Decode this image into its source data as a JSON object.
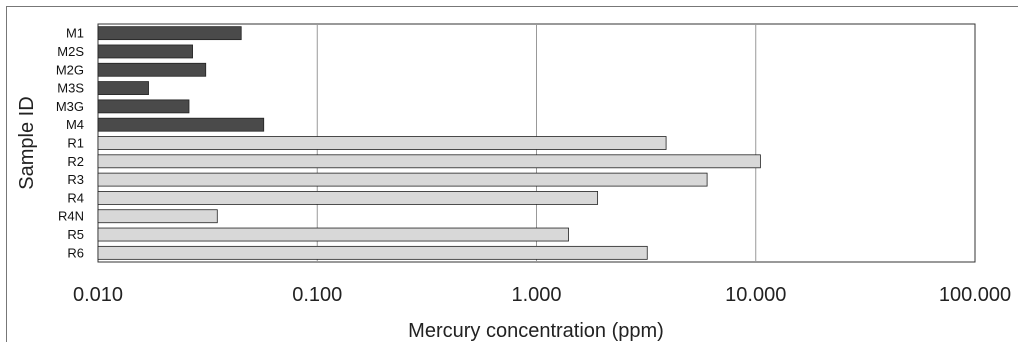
{
  "chart_data": {
    "type": "bar",
    "orientation": "horizontal",
    "x_scale": "log",
    "xlabel": "Mercury concentration (ppm)",
    "ylabel": "Sample ID",
    "xlim": [
      0.01,
      100
    ],
    "x_ticks": [
      "0.010",
      "0.100",
      "1.000",
      "10.000",
      "100.000"
    ],
    "x_tick_values": [
      0.01,
      0.1,
      1,
      10,
      100
    ],
    "grid": "vertical",
    "legend": "none",
    "categories": [
      "M1",
      "M2S",
      "M2G",
      "M3S",
      "M3G",
      "M4",
      "R1",
      "R2",
      "R3",
      "R4",
      "R4N",
      "R5",
      "R6"
    ],
    "values": [
      0.045,
      0.027,
      0.031,
      0.017,
      0.026,
      0.057,
      3.9,
      10.5,
      6.0,
      1.9,
      0.035,
      1.4,
      3.2
    ],
    "groups": [
      "M",
      "M",
      "M",
      "M",
      "M",
      "M",
      "R",
      "R",
      "R",
      "R",
      "R",
      "R",
      "R"
    ],
    "colors": {
      "M": "#4a4a4a",
      "R": "#d8d8d8",
      "grid": "#999999",
      "border": "#333333"
    }
  }
}
